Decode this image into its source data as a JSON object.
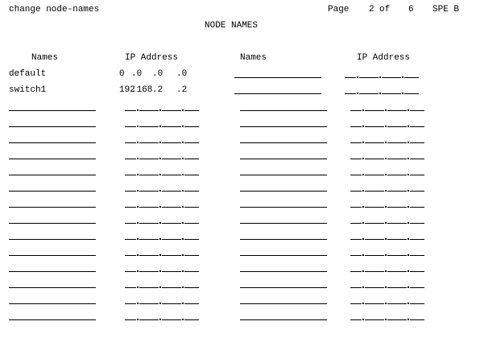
{
  "header": {
    "command": "change node-names",
    "page_label": "Page",
    "page_current": "2",
    "page_of": "of",
    "page_total": "6",
    "system": "SPE B"
  },
  "form_title": "NODE NAMES",
  "columns": {
    "names": "Names",
    "ip_address": "IP Address"
  },
  "entries": [
    {
      "name": "default",
      "ip": [
        "0",
        ".0",
        ".0",
        ".0"
      ]
    },
    {
      "name": "switch1",
      "ip": [
        "192",
        ".168",
        ".2",
        ".2"
      ]
    }
  ],
  "blank_rows_left": 14,
  "blank_rows_right": 16
}
